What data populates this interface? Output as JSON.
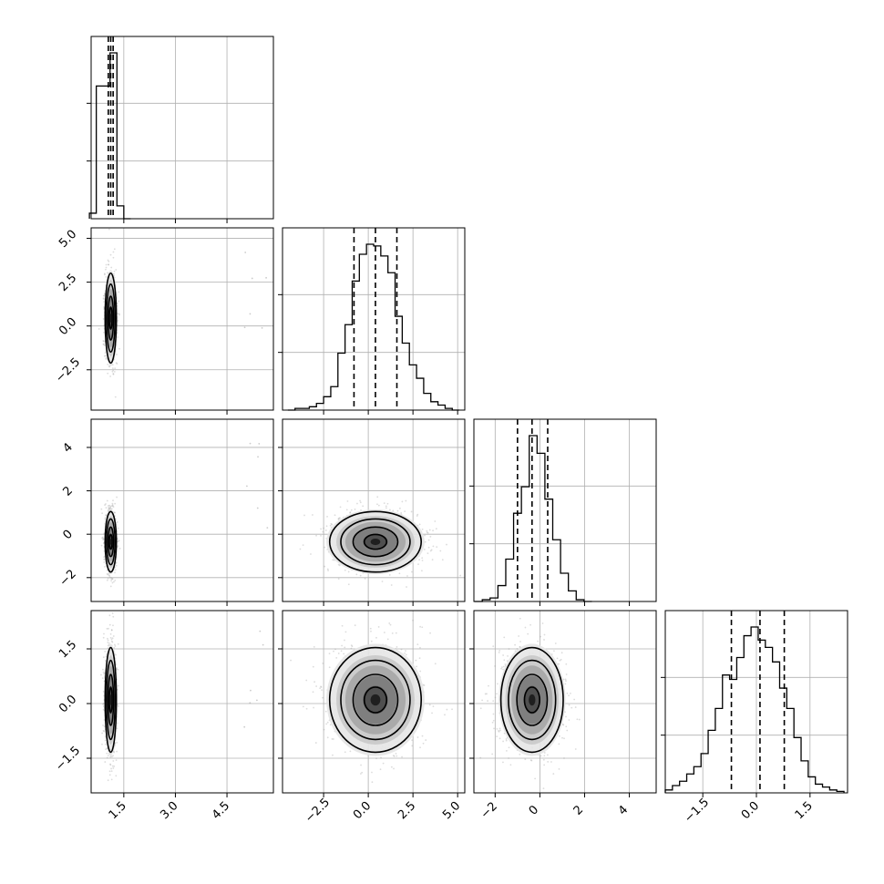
{
  "chart_data": {
    "type": "corner",
    "grid": true,
    "variables": 4,
    "quantile_lines": [
      [
        1.05,
        1.12,
        1.19
      ],
      [
        -0.8,
        0.4,
        1.6
      ],
      [
        -1.0,
        -0.35,
        0.35
      ],
      [
        -0.7,
        0.1,
        0.78
      ]
    ],
    "x_ticks": [
      [
        "1.5",
        "3.0",
        "4.5"
      ],
      [
        "−2.5",
        "0.0",
        "2.5",
        "5.0"
      ],
      [
        "−2",
        "0",
        "2",
        "4"
      ],
      [
        "−1.5",
        "0.0",
        "1.5"
      ]
    ],
    "y_ticks": {
      "row1": [
        "5.0",
        "2.5",
        "0.0",
        "−2.5"
      ],
      "row2": [
        "4",
        "2",
        "0",
        "−2"
      ],
      "row3": [
        "1.5",
        "0.0",
        "−1.5"
      ]
    },
    "histograms": [
      {
        "variable": 0,
        "bins_centers": [
          0.6,
          0.8,
          1.0,
          1.2,
          1.4,
          1.6
        ],
        "counts": [
          3,
          72,
          72,
          90,
          7,
          0
        ],
        "peak": 90
      },
      {
        "variable": 1,
        "bins_centers": [
          -4.3,
          -3.9,
          -3.5,
          -3.1,
          -2.7,
          -2.3,
          -1.9,
          -1.5,
          -1.1,
          -0.7,
          -0.3,
          0.1,
          0.5,
          0.9,
          1.3,
          1.7,
          2.1,
          2.5,
          2.9,
          3.3,
          3.7,
          4.1,
          4.5,
          4.9
        ],
        "counts": [
          0,
          1,
          1,
          2,
          4,
          8,
          14,
          34,
          51,
          77,
          93,
          99,
          98,
          92,
          82,
          56,
          40,
          27,
          19,
          10,
          5,
          3,
          1,
          0
        ],
        "peak": 99
      },
      {
        "variable": 2,
        "bins_centers": [
          -2.75,
          -2.4,
          -2.05,
          -1.7,
          -1.35,
          -1.0,
          -0.65,
          -0.3,
          0.05,
          0.4,
          0.75,
          1.1,
          1.45,
          1.8,
          2.15
        ],
        "counts": [
          0,
          1,
          2,
          9,
          24,
          50,
          65,
          94,
          84,
          58,
          35,
          16,
          6,
          1,
          0
        ],
        "peak": 94
      },
      {
        "variable": 3,
        "bins_centers": [
          -2.45,
          -2.25,
          -2.05,
          -1.85,
          -1.65,
          -1.45,
          -1.25,
          -1.05,
          -0.85,
          -0.65,
          -0.45,
          -0.25,
          -0.05,
          0.15,
          0.35,
          0.55,
          0.75,
          0.95,
          1.15,
          1.35,
          1.55,
          1.75,
          1.95,
          2.15,
          2.35
        ],
        "counts": [
          2,
          5,
          8,
          13,
          18,
          27,
          43,
          58,
          81,
          78,
          93,
          108,
          114,
          105,
          100,
          90,
          72,
          58,
          38,
          22,
          11,
          6,
          4,
          2,
          1
        ],
        "peak": 114
      }
    ],
    "pairs": [
      {
        "x_var": 0,
        "y_var": 1,
        "center": [
          1.12,
          0.45
        ],
        "sigma": [
          0.08,
          1.25
        ]
      },
      {
        "x_var": 0,
        "y_var": 2,
        "center": [
          1.12,
          -0.35
        ],
        "sigma": [
          0.08,
          0.68
        ]
      },
      {
        "x_var": 1,
        "y_var": 2,
        "center": [
          0.4,
          -0.35
        ],
        "sigma": [
          1.25,
          0.68
        ]
      },
      {
        "x_var": 0,
        "y_var": 3,
        "center": [
          1.12,
          0.1
        ],
        "sigma": [
          0.08,
          0.7
        ]
      },
      {
        "x_var": 1,
        "y_var": 3,
        "center": [
          0.4,
          0.1
        ],
        "sigma": [
          1.25,
          0.7
        ]
      },
      {
        "x_var": 2,
        "y_var": 3,
        "center": [
          -0.35,
          0.1
        ],
        "sigma": [
          0.68,
          0.7
        ]
      }
    ],
    "colors": {
      "line": "#000000",
      "grid": "#b0b0b0",
      "points": "#9a9a9a"
    }
  }
}
